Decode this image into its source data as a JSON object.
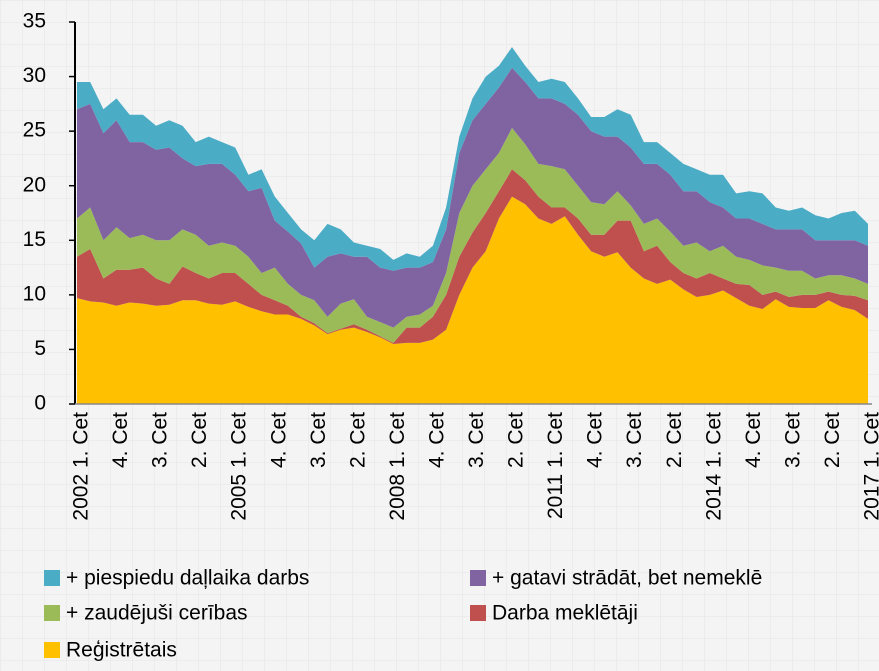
{
  "chart_data": {
    "type": "stacked_area",
    "categories": [
      "2002 1. Cet",
      null,
      null,
      "4. Cet",
      null,
      null,
      "3. Cet",
      null,
      null,
      "2. Cet",
      null,
      null,
      "2005 1. Cet",
      null,
      null,
      "4. Cet",
      null,
      null,
      "3. Cet",
      null,
      null,
      "2. Cet",
      null,
      null,
      "2008 1. Cet",
      null,
      null,
      "4. Cet",
      null,
      null,
      "3. Cet",
      null,
      null,
      "2. Cet",
      null,
      null,
      "2011 1. Cet",
      null,
      null,
      "4. Cet",
      null,
      null,
      "3. Cet",
      null,
      null,
      "2. Cet",
      null,
      null,
      "2014 1. Cet",
      null,
      null,
      "4. Cet",
      null,
      null,
      "3. Cet",
      null,
      null,
      "2. Cet",
      null,
      null,
      "2017 1. Cet"
    ],
    "series": [
      {
        "name": "Reģistrētais",
        "color": "#ffc000",
        "values": [
          9.7,
          9.4,
          9.3,
          9.0,
          9.3,
          9.2,
          9.0,
          9.1,
          9.5,
          9.5,
          9.2,
          9.1,
          9.4,
          8.9,
          8.5,
          8.2,
          8.2,
          7.8,
          7.2,
          6.4,
          6.8,
          7.0,
          6.6,
          6.1,
          5.5,
          5.6,
          5.6,
          5.9,
          6.8,
          10.0,
          12.5,
          14.0,
          17.0,
          19.0,
          18.3,
          17.0,
          16.5,
          17.2,
          15.5,
          14.0,
          13.5,
          13.9,
          12.5,
          11.5,
          11.0,
          11.4,
          10.5,
          9.8,
          10.0,
          10.4,
          9.7,
          9.0,
          8.7,
          9.6,
          8.9,
          8.8,
          8.8,
          9.5,
          8.9,
          8.6,
          7.8
        ]
      },
      {
        "name": "Darba meklētāji",
        "color": "#c0504d",
        "values": [
          3.8,
          4.8,
          2.2,
          3.3,
          3.0,
          3.3,
          2.5,
          1.9,
          3.1,
          2.5,
          2.3,
          2.9,
          2.6,
          2.1,
          1.5,
          1.3,
          0.8,
          0.2,
          0.2,
          0.1,
          0.1,
          0.3,
          0.2,
          0.1,
          0.1,
          1.4,
          1.4,
          2.1,
          3.2,
          3.5,
          3.2,
          3.5,
          2.5,
          2.5,
          2.2,
          2.0,
          1.5,
          0.8,
          1.5,
          1.5,
          2.0,
          2.9,
          4.3,
          2.5,
          3.5,
          1.6,
          1.5,
          1.7,
          2.0,
          1.1,
          1.3,
          1.9,
          1.3,
          0.7,
          0.9,
          1.2,
          1.2,
          0.8,
          1.1,
          1.3,
          1.7
        ]
      },
      {
        "name": "+ zaudējuši cerības",
        "color": "#9bbb59",
        "values": [
          3.5,
          3.8,
          3.5,
          3.9,
          2.9,
          3.0,
          3.5,
          4.0,
          3.4,
          3.5,
          3.0,
          2.8,
          2.5,
          2.5,
          2.0,
          3.0,
          2.0,
          2.0,
          2.1,
          1.5,
          2.3,
          2.3,
          1.2,
          1.3,
          1.4,
          1.0,
          1.2,
          1.0,
          2.0,
          4.0,
          4.3,
          4.0,
          3.5,
          3.8,
          3.3,
          3.0,
          3.8,
          3.5,
          3.0,
          3.0,
          2.8,
          2.7,
          1.4,
          2.5,
          2.5,
          2.8,
          2.5,
          3.3,
          2.0,
          3.0,
          2.5,
          2.3,
          2.7,
          2.2,
          2.4,
          2.2,
          1.5,
          1.5,
          1.8,
          1.6,
          1.5
        ]
      },
      {
        "name": "+ gatavi strādāt, bet nemeklē",
        "color": "#8064a2",
        "values": [
          10.0,
          9.5,
          9.8,
          9.8,
          8.8,
          8.5,
          8.3,
          8.5,
          6.5,
          6.3,
          7.5,
          7.2,
          6.5,
          6.0,
          7.8,
          4.3,
          4.8,
          4.7,
          3.0,
          5.5,
          4.6,
          3.9,
          5.5,
          5.0,
          5.2,
          4.5,
          4.3,
          4.0,
          4.0,
          5.5,
          6.0,
          6.0,
          6.0,
          5.5,
          5.7,
          6.0,
          6.2,
          6.0,
          6.5,
          6.5,
          6.2,
          5.0,
          5.3,
          5.5,
          5.0,
          5.2,
          5.0,
          4.7,
          4.5,
          3.5,
          3.5,
          3.8,
          3.8,
          3.5,
          3.8,
          3.8,
          3.5,
          3.2,
          3.2,
          3.5,
          3.5
        ]
      },
      {
        "name": "+ piespiedu daļlaika darbs",
        "color": "#4bacc6",
        "values": [
          2.5,
          2.0,
          2.2,
          2.0,
          2.5,
          2.5,
          2.2,
          2.5,
          3.0,
          2.2,
          2.5,
          2.0,
          2.5,
          1.5,
          1.7,
          2.2,
          1.7,
          1.3,
          2.5,
          3.0,
          2.2,
          1.3,
          1.0,
          1.7,
          1.0,
          1.3,
          1.0,
          1.5,
          2.0,
          1.5,
          2.0,
          2.5,
          2.0,
          1.9,
          1.5,
          1.5,
          1.8,
          2.0,
          1.5,
          1.3,
          1.8,
          2.5,
          3.0,
          2.0,
          2.0,
          2.0,
          2.5,
          2.0,
          2.5,
          3.0,
          2.3,
          2.5,
          2.8,
          2.0,
          1.7,
          2.0,
          2.3,
          2.0,
          2.5,
          2.7,
          2.0
        ]
      }
    ],
    "ylim": [
      0,
      35
    ],
    "yticks": [
      0,
      5,
      10,
      15,
      20,
      25,
      30,
      35
    ],
    "grid": false
  }
}
